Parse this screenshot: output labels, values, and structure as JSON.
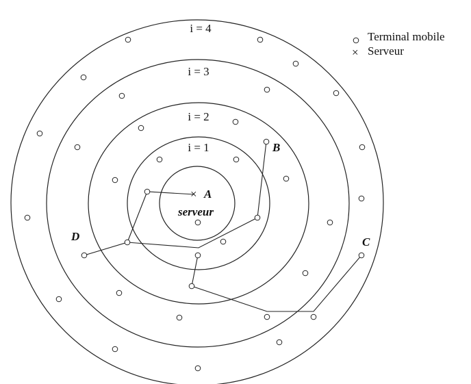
{
  "ring_labels": [
    "i = 1",
    "i = 2",
    "i = 3",
    "i = 4"
  ],
  "node_labels": [
    "A",
    "B",
    "C",
    "D"
  ],
  "server_label": "serveur",
  "legend": [
    "Terminal mobile",
    "Serveur"
  ]
}
